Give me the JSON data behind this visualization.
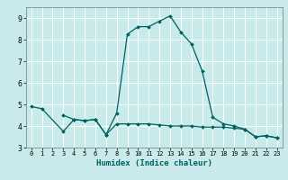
{
  "xlabel": "Humidex (Indice chaleur)",
  "bg_color": "#c8eaea",
  "grid_color": "#ffffff",
  "line_color": "#006060",
  "xlim": [
    -0.5,
    23.5
  ],
  "ylim": [
    3.0,
    9.5
  ],
  "y_ticks": [
    3,
    4,
    5,
    6,
    7,
    8,
    9
  ],
  "x_ticks": [
    0,
    1,
    2,
    3,
    4,
    5,
    6,
    7,
    8,
    9,
    10,
    11,
    12,
    13,
    14,
    15,
    16,
    17,
    18,
    19,
    20,
    21,
    22,
    23
  ],
  "series1_x": [
    0,
    1,
    3,
    4,
    5,
    6,
    7,
    8,
    9,
    10,
    11,
    12,
    13,
    14,
    15,
    16,
    17,
    18,
    19,
    20,
    21,
    22,
    23
  ],
  "series1_y": [
    4.9,
    4.8,
    3.75,
    4.3,
    4.25,
    4.3,
    3.6,
    4.6,
    8.25,
    8.6,
    8.6,
    8.85,
    9.1,
    8.35,
    7.8,
    6.55,
    4.4,
    4.1,
    4.0,
    3.85,
    3.5,
    3.55,
    3.45
  ],
  "series2_x": [
    3,
    4,
    5,
    6,
    7,
    8,
    9,
    10,
    11,
    12,
    13,
    14,
    15,
    16,
    17,
    18,
    19,
    20,
    21,
    22,
    23
  ],
  "series2_y": [
    4.5,
    4.3,
    4.25,
    4.3,
    3.6,
    4.1,
    4.1,
    4.1,
    4.1,
    4.05,
    4.0,
    4.0,
    4.0,
    3.95,
    3.95,
    3.95,
    3.9,
    3.85,
    3.5,
    3.55,
    3.45
  ]
}
